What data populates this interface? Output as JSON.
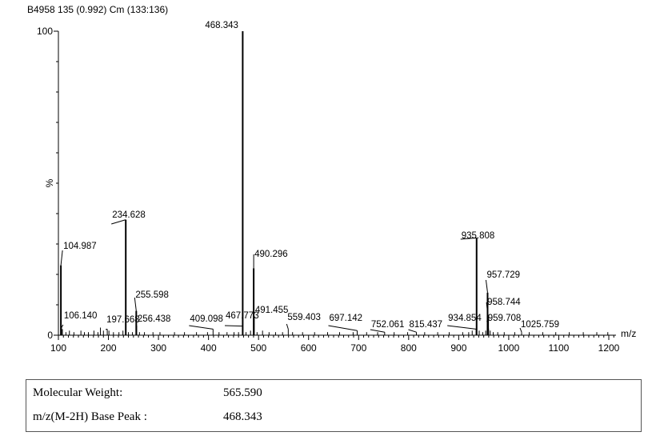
{
  "chart_data": {
    "type": "bar",
    "title": "B4958 135 (0.992) Cm (133:136)",
    "xlabel": "m/z",
    "ylabel": "%",
    "xlim": [
      100,
      1220
    ],
    "ylim": [
      0,
      100
    ],
    "x_ticks": [
      100,
      200,
      300,
      400,
      500,
      600,
      700,
      800,
      900,
      1000,
      1100,
      1200
    ],
    "y_ticks": [
      0,
      100
    ],
    "y_tick_labels": [
      "0",
      "100"
    ],
    "peaks": [
      {
        "mz": 104.987,
        "intensity": 23,
        "label": "104.987"
      },
      {
        "mz": 106.14,
        "intensity": 2.5,
        "label": "106.140"
      },
      {
        "mz": 197.668,
        "intensity": 2,
        "label": "197.668"
      },
      {
        "mz": 234.628,
        "intensity": 38,
        "label": "234.628"
      },
      {
        "mz": 255.598,
        "intensity": 8,
        "label": "255.598"
      },
      {
        "mz": 256.438,
        "intensity": 2,
        "label": "256.438"
      },
      {
        "mz": 409.098,
        "intensity": 2,
        "label": "409.098"
      },
      {
        "mz": 467.773,
        "intensity": 3,
        "label": "467.773"
      },
      {
        "mz": 468.343,
        "intensity": 100,
        "label": "468.343"
      },
      {
        "mz": 490.296,
        "intensity": 22,
        "label": "490.296"
      },
      {
        "mz": 491.455,
        "intensity": 4,
        "label": "491.455"
      },
      {
        "mz": 559.403,
        "intensity": 2,
        "label": "559.403"
      },
      {
        "mz": 697.142,
        "intensity": 1.5,
        "label": "697.142"
      },
      {
        "mz": 752.061,
        "intensity": 1,
        "label": "752.061"
      },
      {
        "mz": 815.437,
        "intensity": 1,
        "label": "815.437"
      },
      {
        "mz": 934.854,
        "intensity": 2,
        "label": "934.854"
      },
      {
        "mz": 935.808,
        "intensity": 32,
        "label": "935.808"
      },
      {
        "mz": 957.729,
        "intensity": 14,
        "label": "957.729"
      },
      {
        "mz": 958.744,
        "intensity": 6,
        "label": "958.744"
      },
      {
        "mz": 959.708,
        "intensity": 2,
        "label": "959.708"
      },
      {
        "mz": 1025.759,
        "intensity": 1,
        "label": "1025.759"
      }
    ]
  },
  "info": {
    "rows": [
      {
        "label": "Molecular Weight:",
        "value": "565.590"
      },
      {
        "label": "m/z(M-2H) Base Peak :",
        "value": "468.343"
      }
    ]
  }
}
